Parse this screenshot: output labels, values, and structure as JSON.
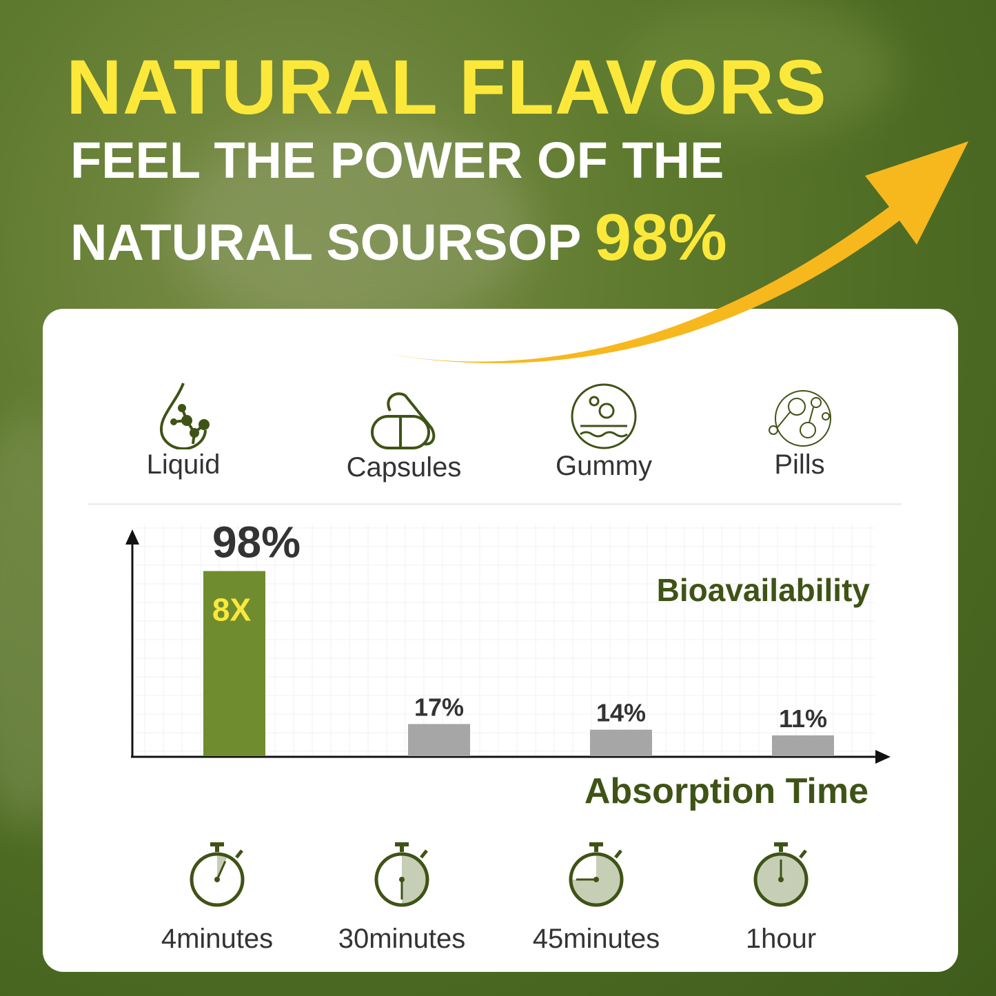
{
  "header": {
    "title": "NATURAL FLAVORS",
    "subtitle_line1": "FEEL THE POWER OF THE",
    "subtitle_line2": "NATURAL SOURSOP",
    "subtitle_highlight": "98%"
  },
  "colors": {
    "title_yellow": "#fbe83a",
    "brand_green": "#6f8c2f",
    "dark_green": "#3f5316",
    "bar_gray": "#a6a6a6",
    "arrow": "#f7b81e",
    "timer_fill": "#c7ceb6"
  },
  "forms": [
    {
      "label": "Liquid",
      "icon": "droplet-molecule-icon"
    },
    {
      "label": "Capsules",
      "icon": "capsule-icon"
    },
    {
      "label": "Gummy",
      "icon": "gummy-circle-icon"
    },
    {
      "label": "Pills",
      "icon": "pills-molecule-icon"
    }
  ],
  "chart_data": {
    "type": "bar",
    "categories": [
      "Liquid",
      "Capsules",
      "Gummy",
      "Pills"
    ],
    "values": [
      98,
      17,
      14,
      11
    ],
    "data_labels": [
      "98%",
      "17%",
      "14%",
      "11%"
    ],
    "highlight_label": "8X",
    "ylabel": "Bioavailability",
    "xlabel": "Absorption Time",
    "ylim": [
      0,
      100
    ],
    "grid": true
  },
  "times": [
    {
      "label": "4minutes",
      "fill": 0.067
    },
    {
      "label": "30minutes",
      "fill": 0.5
    },
    {
      "label": "45minutes",
      "fill": 0.75
    },
    {
      "label": "1hour",
      "fill": 1.0
    }
  ]
}
